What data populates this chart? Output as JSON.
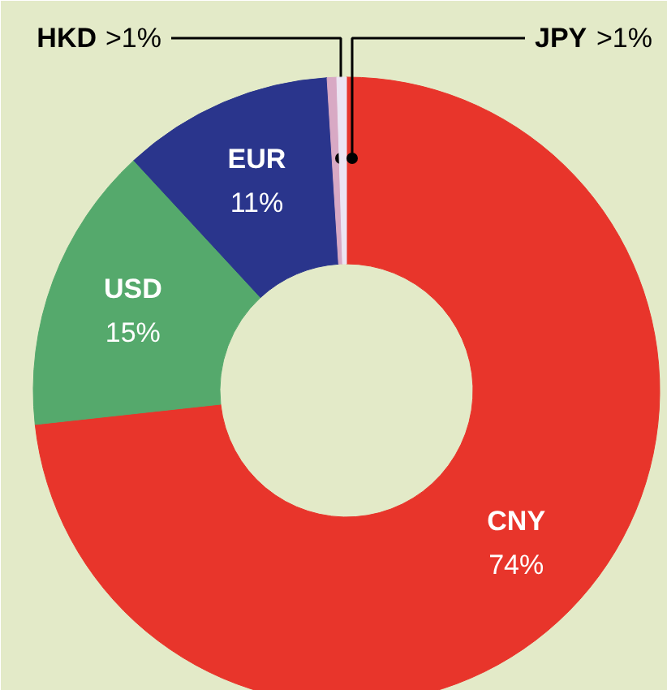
{
  "chart_data": {
    "type": "donut",
    "categories": [
      "CNY",
      "USD",
      "EUR",
      "HKD",
      "JPY"
    ],
    "values": [
      74,
      15,
      11,
      0.5,
      0.5
    ],
    "colors": [
      "#e8352b",
      "#55a96c",
      "#2a358c",
      "#d8a9c4",
      "#ece4f2"
    ],
    "value_labels": [
      "74%",
      "15%",
      "11%",
      ">1%",
      ">1%"
    ]
  }
}
